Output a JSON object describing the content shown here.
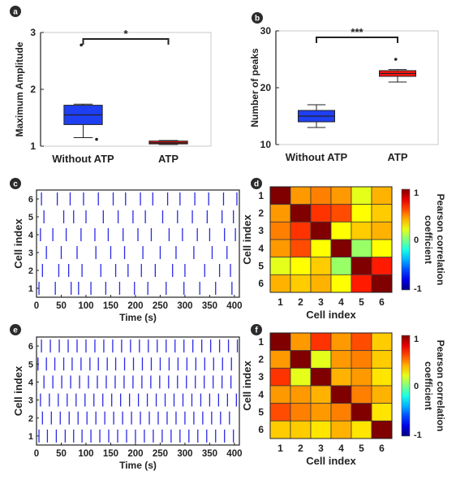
{
  "chart_data": [
    {
      "panel": "a",
      "type": "box",
      "ylabel": "Maximum Amplitude",
      "ylim": [
        1,
        3
      ],
      "yticks": [
        1,
        2,
        3
      ],
      "categories": [
        "Without ATP",
        "ATP"
      ],
      "series": [
        {
          "category": "Without ATP",
          "color": "#1f3ff2",
          "whisker_low": 1.15,
          "q1": 1.38,
          "median": 1.55,
          "q3": 1.72,
          "whisker_high": 1.74,
          "outliers": [
            2.78,
            1.12
          ]
        },
        {
          "category": "ATP",
          "color": "#ff1515",
          "whisker_low": 1.03,
          "q1": 1.04,
          "median": 1.06,
          "q3": 1.09,
          "whisker_high": 1.1,
          "outliers": []
        }
      ],
      "significance": "*"
    },
    {
      "panel": "b",
      "type": "box",
      "ylabel": "Number of peaks",
      "ylim": [
        10,
        30
      ],
      "yticks": [
        10,
        20,
        30
      ],
      "categories": [
        "Without ATP",
        "ATP"
      ],
      "series": [
        {
          "category": "Without ATP",
          "color": "#1f3ff2",
          "whisker_low": 13,
          "q1": 14,
          "median": 15,
          "q3": 16,
          "whisker_high": 17,
          "outliers": []
        },
        {
          "category": "ATP",
          "color": "#ff1515",
          "whisker_low": 21,
          "q1": 22,
          "median": 22.5,
          "q3": 23,
          "whisker_high": 23.2,
          "outliers": [
            25
          ]
        }
      ],
      "significance": "***"
    },
    {
      "panel": "c",
      "type": "raster",
      "xlabel": "Time (s)",
      "ylabel": "Cell index",
      "xlim": [
        0,
        410
      ],
      "xticks": [
        0,
        50,
        100,
        150,
        200,
        250,
        300,
        350,
        400
      ],
      "ylim": [
        0.5,
        6.5
      ],
      "yticks": [
        1,
        2,
        3,
        4,
        5,
        6
      ],
      "color": "#2a2ae6",
      "cells": [
        {
          "cell": 1,
          "spikes": [
            5,
            38,
            70,
            85,
            110,
            140,
            168,
            198,
            225,
            262,
            298,
            330,
            362,
            395
          ]
        },
        {
          "cell": 2,
          "spikes": [
            12,
            45,
            65,
            92,
            130,
            160,
            185,
            212,
            240,
            275,
            300,
            340,
            370,
            392
          ]
        },
        {
          "cell": 3,
          "spikes": [
            20,
            50,
            82,
            120,
            150,
            178,
            215,
            250,
            282,
            318,
            355,
            385
          ]
        },
        {
          "cell": 4,
          "spikes": [
            8,
            33,
            60,
            90,
            118,
            145,
            175,
            205,
            232,
            268,
            295,
            325,
            350,
            380,
            402
          ]
        },
        {
          "cell": 5,
          "spikes": [
            15,
            55,
            75,
            100,
            135,
            165,
            195,
            220,
            255,
            285,
            315,
            345,
            375,
            398
          ]
        },
        {
          "cell": 6,
          "spikes": [
            10,
            42,
            68,
            95,
            125,
            155,
            180,
            210,
            235,
            265,
            290,
            320,
            348,
            378,
            405
          ]
        }
      ]
    },
    {
      "panel": "d",
      "type": "heatmap",
      "xlabel": "Cell index",
      "ylabel": "Cell index",
      "categories": [
        "1",
        "2",
        "3",
        "4",
        "5",
        "6"
      ],
      "colorbar_label": "Pearson correlation coefficient",
      "colorbar_ticks": [
        "1",
        "0",
        "-1"
      ],
      "values": [
        [
          1.0,
          0.45,
          0.5,
          0.45,
          0.2,
          0.4
        ],
        [
          0.45,
          1.0,
          0.65,
          0.6,
          0.25,
          0.35
        ],
        [
          0.5,
          0.65,
          1.0,
          0.25,
          0.35,
          0.4
        ],
        [
          0.45,
          0.6,
          0.25,
          1.0,
          0.05,
          0.25
        ],
        [
          0.2,
          0.25,
          0.35,
          0.05,
          1.0,
          0.7
        ],
        [
          0.4,
          0.35,
          0.4,
          0.25,
          0.7,
          1.0
        ]
      ]
    },
    {
      "panel": "e",
      "type": "raster",
      "xlabel": "Time (s)",
      "ylabel": "Cell index",
      "xlim": [
        0,
        410
      ],
      "xticks": [
        0,
        50,
        100,
        150,
        200,
        250,
        300,
        350,
        400
      ],
      "ylim": [
        0.5,
        6.5
      ],
      "yticks": [
        1,
        2,
        3,
        4,
        5,
        6
      ],
      "color": "#2a2ae6",
      "cells": [
        {
          "cell": 1,
          "spikes": [
            5,
            22,
            40,
            58,
            75,
            92,
            110,
            128,
            146,
            164,
            182,
            200,
            218,
            236,
            254,
            272,
            290,
            308,
            326,
            344,
            362,
            380,
            398
          ]
        },
        {
          "cell": 2,
          "spikes": [
            12,
            30,
            48,
            66,
            84,
            102,
            120,
            138,
            156,
            174,
            192,
            210,
            228,
            246,
            264,
            282,
            300,
            318,
            336,
            354,
            372,
            390
          ]
        },
        {
          "cell": 3,
          "spikes": [
            8,
            26,
            44,
            62,
            80,
            98,
            116,
            134,
            152,
            170,
            188,
            206,
            224,
            242,
            260,
            278,
            296,
            314,
            332,
            350,
            368,
            386,
            404
          ]
        },
        {
          "cell": 4,
          "spikes": [
            15,
            33,
            51,
            69,
            87,
            105,
            123,
            141,
            159,
            177,
            195,
            213,
            231,
            249,
            267,
            285,
            303,
            321,
            339,
            357,
            375,
            393
          ]
        },
        {
          "cell": 5,
          "spikes": [
            3,
            20,
            37,
            55,
            72,
            90,
            108,
            125,
            143,
            160,
            178,
            196,
            214,
            232,
            250,
            268,
            286,
            304,
            322,
            340,
            358,
            376,
            394
          ]
        },
        {
          "cell": 6,
          "spikes": [
            10,
            28,
            46,
            64,
            82,
            100,
            118,
            136,
            154,
            172,
            190,
            208,
            226,
            244,
            262,
            280,
            298,
            316,
            334,
            352,
            370,
            388,
            406
          ]
        }
      ]
    },
    {
      "panel": "f",
      "type": "heatmap",
      "xlabel": "Cell index",
      "ylabel": "Cell index",
      "categories": [
        "1",
        "2",
        "3",
        "4",
        "5",
        "6"
      ],
      "colorbar_label": "Pearson correlation coefficient",
      "colorbar_ticks": [
        "1",
        "0",
        "-1"
      ],
      "values": [
        [
          1.0,
          0.45,
          0.65,
          0.45,
          0.6,
          0.35
        ],
        [
          0.45,
          1.0,
          0.2,
          0.45,
          0.5,
          0.35
        ],
        [
          0.65,
          0.2,
          1.0,
          0.4,
          0.45,
          0.3
        ],
        [
          0.45,
          0.45,
          0.4,
          1.0,
          0.5,
          0.4
        ],
        [
          0.6,
          0.5,
          0.45,
          0.5,
          1.0,
          0.3
        ],
        [
          0.35,
          0.35,
          0.3,
          0.4,
          0.3,
          1.0
        ]
      ]
    }
  ]
}
